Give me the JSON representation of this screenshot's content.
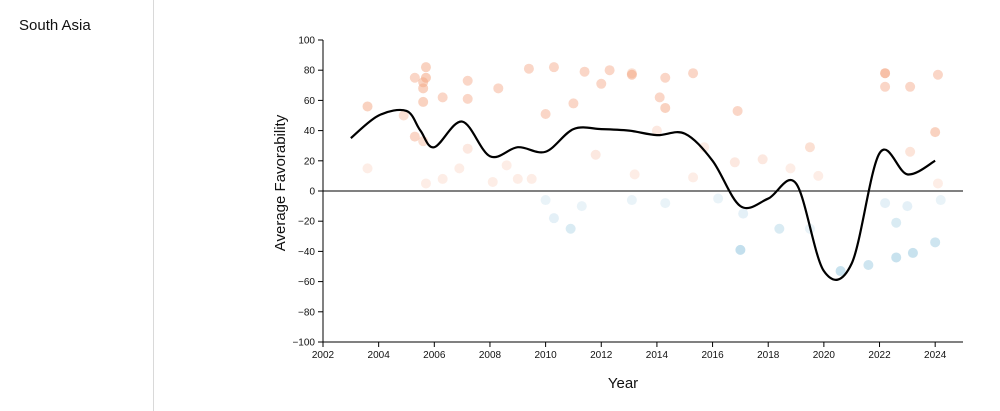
{
  "page": {
    "region_label": "South Asia"
  },
  "colors": {
    "positive_dot": "#f4a582",
    "negative_dot": "#92c5de",
    "trend_line": "#000000"
  },
  "chart_data": {
    "type": "scatter",
    "xlabel": "Year",
    "ylabel": "Average Favorability",
    "xlim": [
      2002,
      2025
    ],
    "ylim": [
      -100,
      100
    ],
    "x_ticks": [
      2002,
      2004,
      2006,
      2008,
      2010,
      2012,
      2014,
      2016,
      2018,
      2020,
      2022,
      2024
    ],
    "y_ticks": [
      -100,
      -80,
      -60,
      -40,
      -20,
      0,
      20,
      40,
      60,
      80,
      100
    ],
    "zero_line": true,
    "grid": false,
    "points": [
      {
        "x": 2003.6,
        "y": 56,
        "o": 0.5
      },
      {
        "x": 2003.6,
        "y": 15,
        "o": 0.2
      },
      {
        "x": 2004.9,
        "y": 50,
        "o": 0.35
      },
      {
        "x": 2005.3,
        "y": 75,
        "o": 0.45
      },
      {
        "x": 2005.3,
        "y": 36,
        "o": 0.45
      },
      {
        "x": 2005.7,
        "y": 82,
        "o": 0.5
      },
      {
        "x": 2005.7,
        "y": 75,
        "o": 0.55
      },
      {
        "x": 2005.6,
        "y": 72,
        "o": 0.5
      },
      {
        "x": 2005.6,
        "y": 68,
        "o": 0.5
      },
      {
        "x": 2005.6,
        "y": 59,
        "o": 0.5
      },
      {
        "x": 2005.6,
        "y": 33,
        "o": 0.35
      },
      {
        "x": 2005.7,
        "y": 5,
        "o": 0.2
      },
      {
        "x": 2006.3,
        "y": 62,
        "o": 0.45
      },
      {
        "x": 2006.3,
        "y": 8,
        "o": 0.2
      },
      {
        "x": 2006.9,
        "y": 15,
        "o": 0.2
      },
      {
        "x": 2007.2,
        "y": 73,
        "o": 0.45
      },
      {
        "x": 2007.2,
        "y": 61,
        "o": 0.45
      },
      {
        "x": 2007.2,
        "y": 28,
        "o": 0.25
      },
      {
        "x": 2008.1,
        "y": 6,
        "o": 0.2
      },
      {
        "x": 2008.3,
        "y": 68,
        "o": 0.45
      },
      {
        "x": 2008.6,
        "y": 17,
        "o": 0.2
      },
      {
        "x": 2009.0,
        "y": 8,
        "o": 0.2
      },
      {
        "x": 2009.4,
        "y": 81,
        "o": 0.45
      },
      {
        "x": 2009.5,
        "y": 8,
        "o": 0.2
      },
      {
        "x": 2010.0,
        "y": 51,
        "o": 0.45
      },
      {
        "x": 2010.3,
        "y": 82,
        "o": 0.45
      },
      {
        "x": 2011.0,
        "y": 58,
        "o": 0.45
      },
      {
        "x": 2011.4,
        "y": 79,
        "o": 0.45
      },
      {
        "x": 2011.8,
        "y": 24,
        "o": 0.25
      },
      {
        "x": 2012.0,
        "y": 71,
        "o": 0.45
      },
      {
        "x": 2012.3,
        "y": 80,
        "o": 0.45
      },
      {
        "x": 2013.1,
        "y": 77,
        "o": 0.55
      },
      {
        "x": 2013.1,
        "y": 78,
        "o": 0.35
      },
      {
        "x": 2013.2,
        "y": 11,
        "o": 0.2
      },
      {
        "x": 2014.0,
        "y": 40,
        "o": 0.25
      },
      {
        "x": 2014.1,
        "y": 62,
        "o": 0.45
      },
      {
        "x": 2014.3,
        "y": 75,
        "o": 0.45
      },
      {
        "x": 2014.3,
        "y": 55,
        "o": 0.5
      },
      {
        "x": 2015.3,
        "y": 78,
        "o": 0.45
      },
      {
        "x": 2015.3,
        "y": 9,
        "o": 0.2
      },
      {
        "x": 2015.7,
        "y": 29,
        "o": 0.2
      },
      {
        "x": 2016.8,
        "y": 19,
        "o": 0.25
      },
      {
        "x": 2016.9,
        "y": 53,
        "o": 0.45
      },
      {
        "x": 2017.8,
        "y": 21,
        "o": 0.25
      },
      {
        "x": 2018.8,
        "y": 15,
        "o": 0.2
      },
      {
        "x": 2019.5,
        "y": 29,
        "o": 0.35
      },
      {
        "x": 2019.8,
        "y": 10,
        "o": 0.2
      },
      {
        "x": 2022.2,
        "y": 78,
        "o": 0.7
      },
      {
        "x": 2022.2,
        "y": 69,
        "o": 0.45
      },
      {
        "x": 2023.1,
        "y": 69,
        "o": 0.45
      },
      {
        "x": 2023.1,
        "y": 26,
        "o": 0.3
      },
      {
        "x": 2024.0,
        "y": 39,
        "o": 0.5
      },
      {
        "x": 2024.1,
        "y": 77,
        "o": 0.45
      },
      {
        "x": 2024.1,
        "y": 5,
        "o": 0.2
      },
      {
        "x": 2010.0,
        "y": -6,
        "o": 0.2
      },
      {
        "x": 2010.3,
        "y": -18,
        "o": 0.25
      },
      {
        "x": 2010.9,
        "y": -25,
        "o": 0.35
      },
      {
        "x": 2011.3,
        "y": -10,
        "o": 0.2
      },
      {
        "x": 2013.1,
        "y": -6,
        "o": 0.2
      },
      {
        "x": 2014.3,
        "y": -8,
        "o": 0.2
      },
      {
        "x": 2016.2,
        "y": -5,
        "o": 0.2
      },
      {
        "x": 2017.1,
        "y": -15,
        "o": 0.25
      },
      {
        "x": 2017.0,
        "y": -39,
        "o": 0.55
      },
      {
        "x": 2018.4,
        "y": -25,
        "o": 0.35
      },
      {
        "x": 2019.5,
        "y": -25,
        "o": 0.2
      },
      {
        "x": 2020.6,
        "y": -53,
        "o": 0.5
      },
      {
        "x": 2021.6,
        "y": -49,
        "o": 0.45
      },
      {
        "x": 2022.2,
        "y": -8,
        "o": 0.25
      },
      {
        "x": 2022.6,
        "y": -21,
        "o": 0.35
      },
      {
        "x": 2022.6,
        "y": -44,
        "o": 0.5
      },
      {
        "x": 2023.0,
        "y": -10,
        "o": 0.25
      },
      {
        "x": 2023.2,
        "y": -41,
        "o": 0.5
      },
      {
        "x": 2024.0,
        "y": -34,
        "o": 0.45
      },
      {
        "x": 2024.2,
        "y": -6,
        "o": 0.2
      }
    ],
    "trend_line": {
      "x": [
        2003.0,
        2004.0,
        2005.0,
        2005.5,
        2006.0,
        2007.0,
        2008.0,
        2009.0,
        2010.0,
        2011.0,
        2012.0,
        2013.0,
        2014.0,
        2015.0,
        2016.0,
        2017.0,
        2018.0,
        2019.0,
        2020.0,
        2021.0,
        2022.0,
        2023.0,
        2024.0
      ],
      "y": [
        35,
        50,
        53,
        40,
        29,
        46,
        23,
        29,
        26,
        41,
        41,
        40,
        37,
        38,
        20,
        -10,
        -5,
        5,
        -53,
        -48,
        25,
        11,
        20
      ]
    }
  }
}
